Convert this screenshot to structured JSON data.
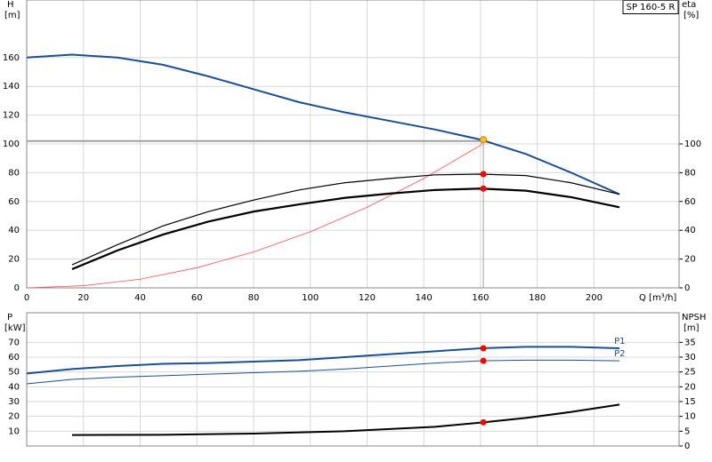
{
  "chart_data": [
    {
      "type": "line",
      "model": "SP 160-5 R",
      "y_label": "H",
      "y_unit": "[m]",
      "y2_label": "eta",
      "y2_unit": "[%]",
      "x_label": "Q [m³/h]",
      "xlim": [
        0,
        230
      ],
      "xticks": [
        0,
        20,
        40,
        60,
        80,
        100,
        120,
        140,
        160,
        180,
        200
      ],
      "ylim": [
        0,
        200
      ],
      "yticks": [
        0,
        20,
        40,
        60,
        80,
        100,
        120,
        140,
        160
      ],
      "y2lim": [
        0,
        200
      ],
      "y2ticks": [
        0,
        20,
        40,
        60,
        80,
        100
      ],
      "grid": true,
      "guide": {
        "x": 161,
        "y": 102,
        "color": "#a0a0a0"
      },
      "series": [
        {
          "color": "#ff5050",
          "line_width": 0.8,
          "x": [
            0,
            20,
            40,
            60,
            80,
            100,
            120,
            140,
            160,
            161
          ],
          "values": [
            0,
            1.5,
            6,
            14,
            25,
            39,
            56,
            76,
            99,
            103
          ]
        },
        {
          "color": "#1a4f96",
          "line_width": 2,
          "x": [
            0,
            16,
            32,
            48,
            64,
            80,
            96,
            112,
            128,
            144,
            160,
            176,
            192,
            209
          ],
          "values": [
            160,
            162,
            160,
            155,
            147,
            138,
            129,
            122,
            116,
            110,
            103,
            93,
            80,
            65
          ]
        },
        {
          "color": "#000000",
          "line_width": 1.2,
          "axis": "y2",
          "x": [
            16,
            32,
            48,
            64,
            80,
            96,
            112,
            128,
            144,
            160,
            176,
            192,
            209
          ],
          "values": [
            16,
            30,
            43,
            53,
            61,
            68,
            73,
            76,
            78.5,
            79,
            78,
            73,
            65
          ]
        },
        {
          "color": "#000000",
          "line_width": 2.2,
          "axis": "y2",
          "x": [
            16,
            32,
            48,
            64,
            80,
            96,
            112,
            128,
            144,
            160,
            176,
            192,
            209
          ],
          "values": [
            13,
            26,
            37,
            46,
            53,
            58,
            62.5,
            65.5,
            68,
            69,
            67.5,
            63,
            56
          ]
        },
        {
          "color": "#f5c518",
          "marker": true,
          "x": [
            161
          ],
          "values": [
            103
          ]
        },
        {
          "color": "#ff0000",
          "marker": true,
          "axis": "y2",
          "x": [
            161,
            161
          ],
          "values": [
            79,
            69
          ]
        }
      ]
    },
    {
      "type": "line",
      "y_label": "P",
      "y_unit": "[kW]",
      "y2_label": "NPSH",
      "y2_unit": "[m]",
      "xlim": [
        0,
        230
      ],
      "ylim": [
        0,
        90
      ],
      "yticks": [
        10,
        20,
        30,
        40,
        50,
        60,
        70
      ],
      "y2lim": [
        0,
        45
      ],
      "y2ticks": [
        0,
        5,
        10,
        15,
        20,
        25,
        30,
        35
      ],
      "grid": true,
      "series": [
        {
          "name": "P1",
          "color": "#1a4f96",
          "line_width": 2,
          "x": [
            0,
            16,
            32,
            48,
            64,
            80,
            96,
            112,
            128,
            144,
            160,
            176,
            192,
            209
          ],
          "values": [
            49,
            52,
            54,
            55.5,
            56,
            57,
            58,
            60,
            62,
            64,
            66,
            67,
            67,
            66
          ]
        },
        {
          "name": "P2",
          "color": "#1a4f96",
          "line_width": 1,
          "x": [
            0,
            16,
            32,
            48,
            64,
            80,
            96,
            112,
            128,
            144,
            160,
            176,
            192,
            209
          ],
          "values": [
            42,
            45,
            46.5,
            47.5,
            48.5,
            49.5,
            50.5,
            52,
            54,
            56,
            57.5,
            58,
            58,
            57.5
          ]
        },
        {
          "color": "#000000",
          "line_width": 2,
          "axis": "y2",
          "x": [
            16,
            48,
            80,
            112,
            144,
            161,
            176,
            192,
            209
          ],
          "values": [
            3.7,
            3.8,
            4.2,
            5,
            6.5,
            8,
            9.5,
            11.5,
            14
          ]
        },
        {
          "color": "#ff0000",
          "marker": true,
          "x": [
            161,
            161
          ],
          "values": [
            66,
            57.5
          ]
        },
        {
          "color": "#ff0000",
          "marker": true,
          "axis": "y2",
          "x": [
            161
          ],
          "values": [
            8
          ]
        }
      ]
    }
  ]
}
